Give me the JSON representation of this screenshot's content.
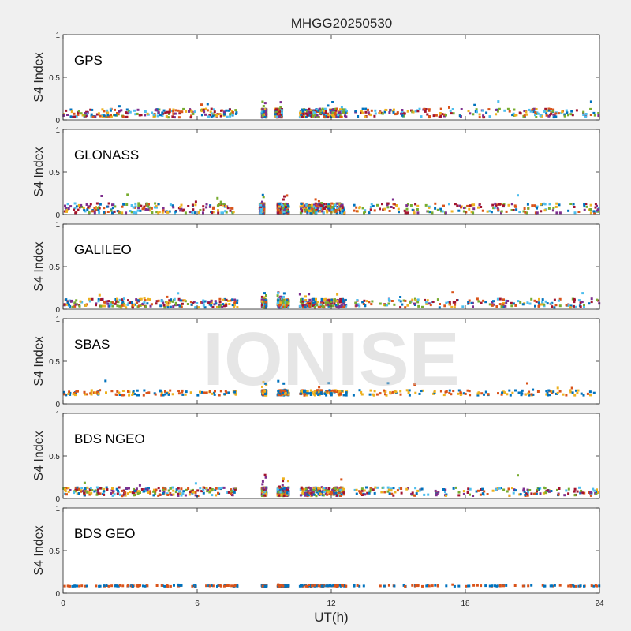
{
  "title": "MHGG20250530",
  "watermark": "IONISE",
  "xlabel": "UT(h)",
  "xticks": [
    "0",
    "6",
    "12",
    "18",
    "24"
  ],
  "colors": [
    "#0072bd",
    "#d95319",
    "#edb120",
    "#7e2f8e",
    "#77ac30",
    "#4dbeee",
    "#a2142f"
  ],
  "chart_data": [
    {
      "type": "scatter",
      "name": "GPS",
      "ylabel": "S4 Index",
      "xlim": [
        0,
        24
      ],
      "ylim": [
        0,
        1
      ],
      "yticks": [
        "0",
        "0.5",
        "1"
      ],
      "baseline_s4": 0.08,
      "spread_s4": 0.05,
      "max_s4": 0.22,
      "n_series": 7,
      "coverage_hours": [
        [
          0,
          7.8
        ],
        [
          8.9,
          9.1
        ],
        [
          9.5,
          9.8
        ],
        [
          10.6,
          12.7
        ],
        [
          13.0,
          24.0
        ]
      ]
    },
    {
      "type": "scatter",
      "name": "GLONASS",
      "ylabel": "S4 Index",
      "xlim": [
        0,
        24
      ],
      "ylim": [
        0,
        1
      ],
      "yticks": [
        "0",
        "0.5",
        "1"
      ],
      "baseline_s4": 0.07,
      "spread_s4": 0.06,
      "max_s4": 0.24,
      "n_series": 7,
      "coverage_hours": [
        [
          0,
          7.8
        ],
        [
          8.8,
          9.0
        ],
        [
          9.6,
          10.1
        ],
        [
          10.6,
          12.6
        ],
        [
          13.0,
          24.0
        ]
      ]
    },
    {
      "type": "scatter",
      "name": "GALILEO",
      "ylabel": "S4 Index",
      "xlim": [
        0,
        24
      ],
      "ylim": [
        0,
        1
      ],
      "yticks": [
        "0",
        "0.5",
        "1"
      ],
      "baseline_s4": 0.07,
      "spread_s4": 0.05,
      "max_s4": 0.2,
      "n_series": 7,
      "coverage_hours": [
        [
          0,
          7.8
        ],
        [
          8.9,
          9.1
        ],
        [
          9.6,
          10.1
        ],
        [
          10.6,
          12.7
        ],
        [
          13.0,
          24.0
        ]
      ]
    },
    {
      "type": "scatter",
      "name": "SBAS",
      "ylabel": "S4 Index",
      "xlim": [
        0,
        24
      ],
      "ylim": [
        0,
        1
      ],
      "yticks": [
        "0",
        "0.5",
        "1"
      ],
      "baseline_s4": 0.13,
      "spread_s4": 0.03,
      "max_s4": 0.27,
      "n_series": 3,
      "coverage_hours": [
        [
          0,
          7.8
        ],
        [
          8.9,
          9.1
        ],
        [
          9.6,
          10.1
        ],
        [
          10.6,
          12.7
        ],
        [
          13.0,
          24.0
        ]
      ]
    },
    {
      "type": "scatter",
      "name": "BDS NGEO",
      "ylabel": "S4 Index",
      "xlim": [
        0,
        24
      ],
      "ylim": [
        0,
        1
      ],
      "yticks": [
        "0",
        "0.5",
        "1"
      ],
      "baseline_s4": 0.08,
      "spread_s4": 0.05,
      "max_s4": 0.29,
      "n_series": 7,
      "coverage_hours": [
        [
          0,
          7.8
        ],
        [
          8.9,
          9.1
        ],
        [
          9.6,
          10.1
        ],
        [
          10.6,
          12.6
        ],
        [
          13.0,
          24.0
        ]
      ]
    },
    {
      "type": "scatter",
      "name": "BDS GEO",
      "ylabel": "S4 Index",
      "xlim": [
        0,
        24
      ],
      "ylim": [
        0,
        1
      ],
      "yticks": [
        "0",
        "0.5",
        "1"
      ],
      "baseline_s4": 0.085,
      "spread_s4": 0.006,
      "max_s4": 0.1,
      "n_series": 2,
      "coverage_hours": [
        [
          0,
          7.8
        ],
        [
          8.9,
          9.1
        ],
        [
          9.6,
          10.1
        ],
        [
          10.6,
          12.7
        ],
        [
          13.0,
          24.0
        ]
      ]
    }
  ]
}
